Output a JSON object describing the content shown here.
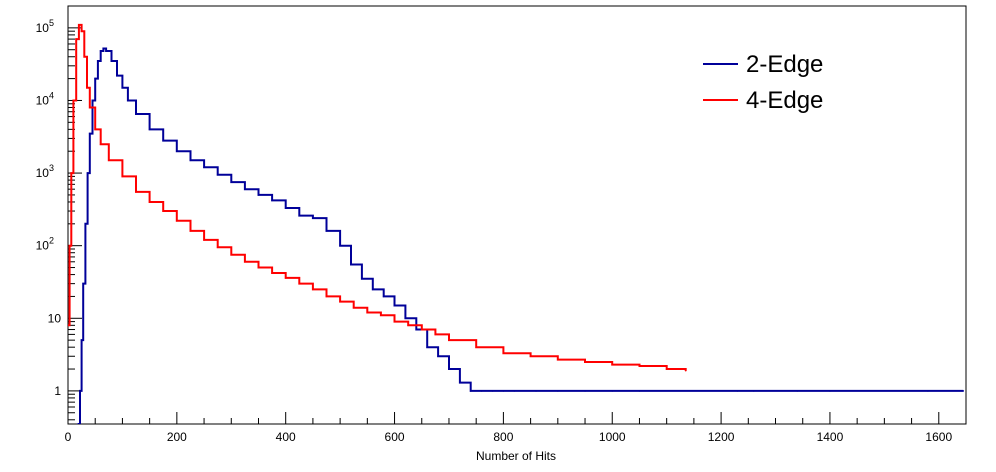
{
  "chart_data": {
    "type": "line",
    "title": "",
    "xlabel": "Number of Hits",
    "ylabel": "",
    "xlim": [
      0,
      1650
    ],
    "ylim": [
      0.35,
      200000
    ],
    "yscale": "log",
    "grid": false,
    "legend_position": "top-right",
    "x_ticks": [
      {
        "value": 0,
        "label": "0"
      },
      {
        "value": 200,
        "label": "200"
      },
      {
        "value": 400,
        "label": "400"
      },
      {
        "value": 600,
        "label": "600"
      },
      {
        "value": 800,
        "label": "800"
      },
      {
        "value": 1000,
        "label": "1000"
      },
      {
        "value": 1200,
        "label": "1200"
      },
      {
        "value": 1400,
        "label": "1400"
      },
      {
        "value": 1600,
        "label": "1600"
      }
    ],
    "y_ticks": [
      {
        "value": 1,
        "label": "1"
      },
      {
        "value": 10,
        "label": "10"
      },
      {
        "value": 100,
        "label": "10",
        "exponent": "2"
      },
      {
        "value": 1000,
        "label": "10",
        "exponent": "3"
      },
      {
        "value": 10000,
        "label": "10",
        "exponent": "4"
      },
      {
        "value": 100000,
        "label": "10",
        "exponent": "5"
      }
    ],
    "series": [
      {
        "name": "2-Edge",
        "color": "#000099",
        "points": [
          [
            18,
            0.35
          ],
          [
            22,
            1
          ],
          [
            25,
            5
          ],
          [
            28,
            30
          ],
          [
            32,
            200
          ],
          [
            36,
            1000
          ],
          [
            40,
            3500
          ],
          [
            45,
            10000
          ],
          [
            50,
            20000
          ],
          [
            55,
            35000
          ],
          [
            60,
            48000
          ],
          [
            65,
            52000
          ],
          [
            70,
            48000
          ],
          [
            80,
            35000
          ],
          [
            90,
            22000
          ],
          [
            100,
            15000
          ],
          [
            110,
            10000
          ],
          [
            125,
            6500
          ],
          [
            150,
            4000
          ],
          [
            175,
            2800
          ],
          [
            200,
            2000
          ],
          [
            225,
            1500
          ],
          [
            250,
            1200
          ],
          [
            275,
            950
          ],
          [
            300,
            750
          ],
          [
            325,
            600
          ],
          [
            350,
            500
          ],
          [
            375,
            420
          ],
          [
            400,
            330
          ],
          [
            425,
            260
          ],
          [
            450,
            240
          ],
          [
            475,
            160
          ],
          [
            500,
            100
          ],
          [
            520,
            55
          ],
          [
            540,
            35
          ],
          [
            560,
            25
          ],
          [
            580,
            20
          ],
          [
            600,
            15
          ],
          [
            620,
            10
          ],
          [
            640,
            7
          ],
          [
            660,
            4
          ],
          [
            680,
            3
          ],
          [
            700,
            2
          ],
          [
            720,
            1.3
          ],
          [
            740,
            1
          ],
          [
            760,
            1
          ],
          [
            780,
            1
          ],
          [
            800,
            1
          ],
          [
            820,
            1
          ],
          [
            860,
            1
          ],
          [
            900,
            1
          ],
          [
            950,
            1
          ],
          [
            1000,
            1
          ],
          [
            1050,
            1
          ],
          [
            1230,
            1
          ],
          [
            1260,
            1
          ],
          [
            1340,
            1
          ],
          [
            1400,
            1
          ],
          [
            1580,
            1
          ],
          [
            1645,
            1
          ]
        ]
      },
      {
        "name": "4-Edge",
        "color": "#ff0000",
        "points": [
          [
            0,
            8
          ],
          [
            3,
            100
          ],
          [
            6,
            1000
          ],
          [
            10,
            10000
          ],
          [
            15,
            70000
          ],
          [
            20,
            110000
          ],
          [
            25,
            90000
          ],
          [
            30,
            40000
          ],
          [
            35,
            15000
          ],
          [
            40,
            8000
          ],
          [
            50,
            4000
          ],
          [
            60,
            2500
          ],
          [
            75,
            1500
          ],
          [
            100,
            900
          ],
          [
            125,
            550
          ],
          [
            150,
            400
          ],
          [
            175,
            300
          ],
          [
            200,
            220
          ],
          [
            225,
            160
          ],
          [
            250,
            120
          ],
          [
            275,
            95
          ],
          [
            300,
            75
          ],
          [
            325,
            60
          ],
          [
            350,
            50
          ],
          [
            375,
            42
          ],
          [
            400,
            36
          ],
          [
            425,
            30
          ],
          [
            450,
            25
          ],
          [
            475,
            20
          ],
          [
            500,
            17
          ],
          [
            525,
            14
          ],
          [
            550,
            12
          ],
          [
            575,
            11
          ],
          [
            600,
            9
          ],
          [
            625,
            8
          ],
          [
            650,
            7
          ],
          [
            675,
            6
          ],
          [
            700,
            5
          ],
          [
            750,
            4
          ],
          [
            800,
            3.3
          ],
          [
            850,
            3
          ],
          [
            900,
            2.7
          ],
          [
            950,
            2.5
          ],
          [
            1000,
            2.3
          ],
          [
            1050,
            2.2
          ],
          [
            1100,
            2
          ],
          [
            1135,
            1.9
          ]
        ]
      }
    ]
  }
}
